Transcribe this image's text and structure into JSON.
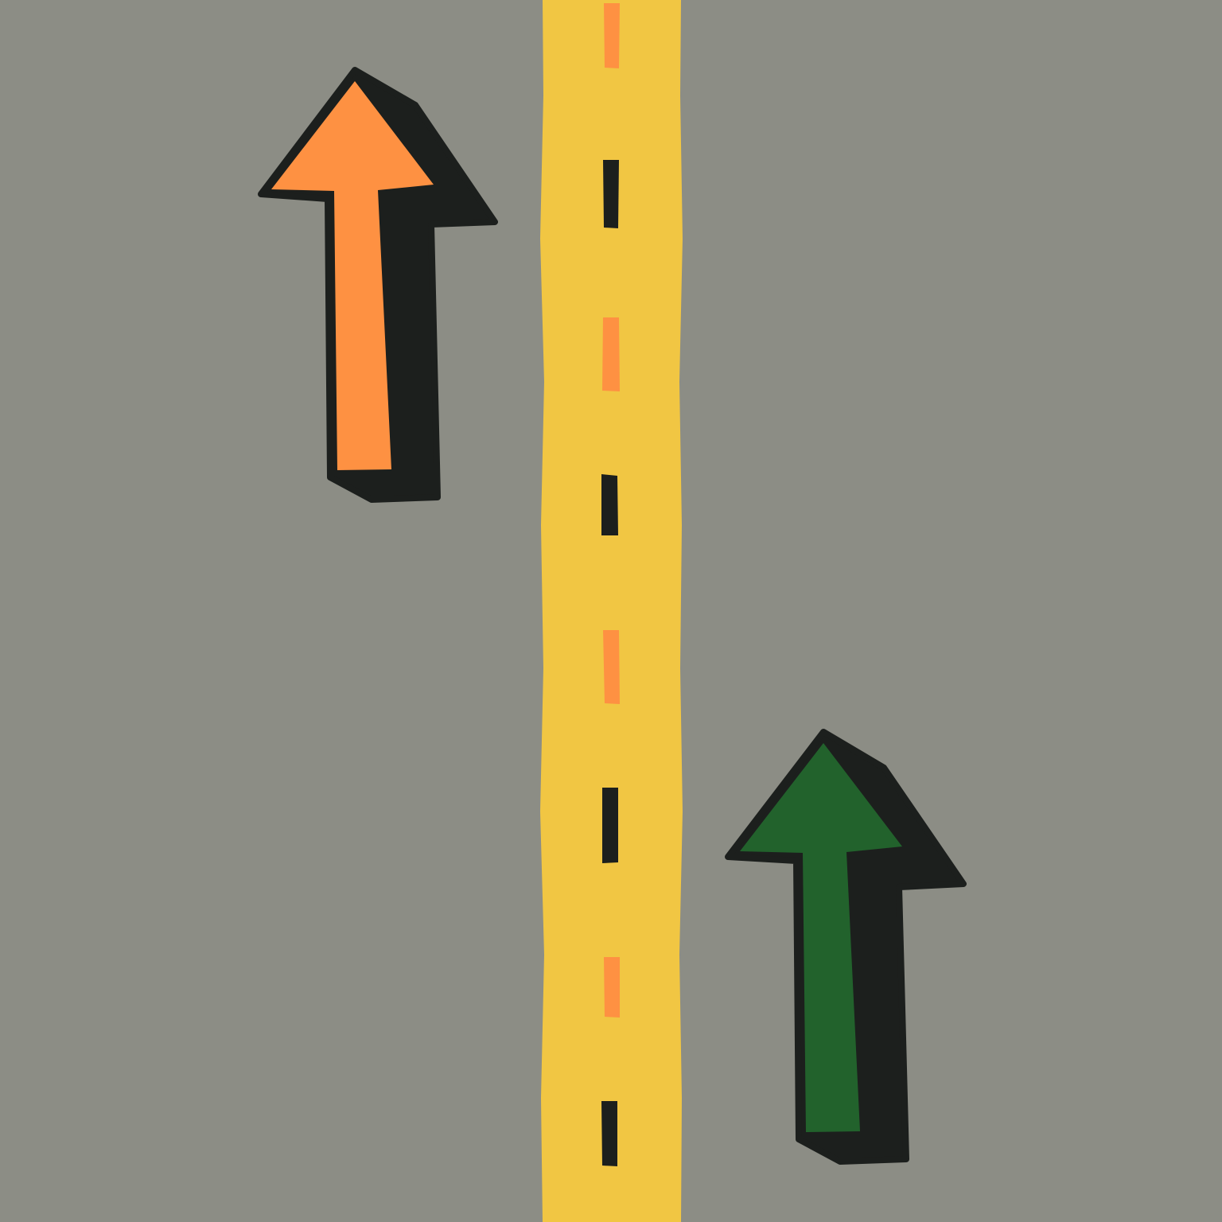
{
  "colors": {
    "road": "#8c8d85",
    "median": "#f1c643",
    "dash_orange": "#fe9142",
    "dash_dark": "#1c1f1d",
    "outline": "#1c1f1d",
    "arrow_left_fill": "#fe9142",
    "arrow_right_fill": "#22622c"
  },
  "median_dashes": [
    "orange",
    "dark",
    "orange",
    "dark",
    "orange",
    "dark",
    "orange",
    "dark"
  ],
  "arrows": [
    {
      "id": "left-lane-arrow",
      "direction": "up",
      "color": "orange"
    },
    {
      "id": "right-lane-arrow",
      "direction": "up",
      "color": "green"
    }
  ]
}
